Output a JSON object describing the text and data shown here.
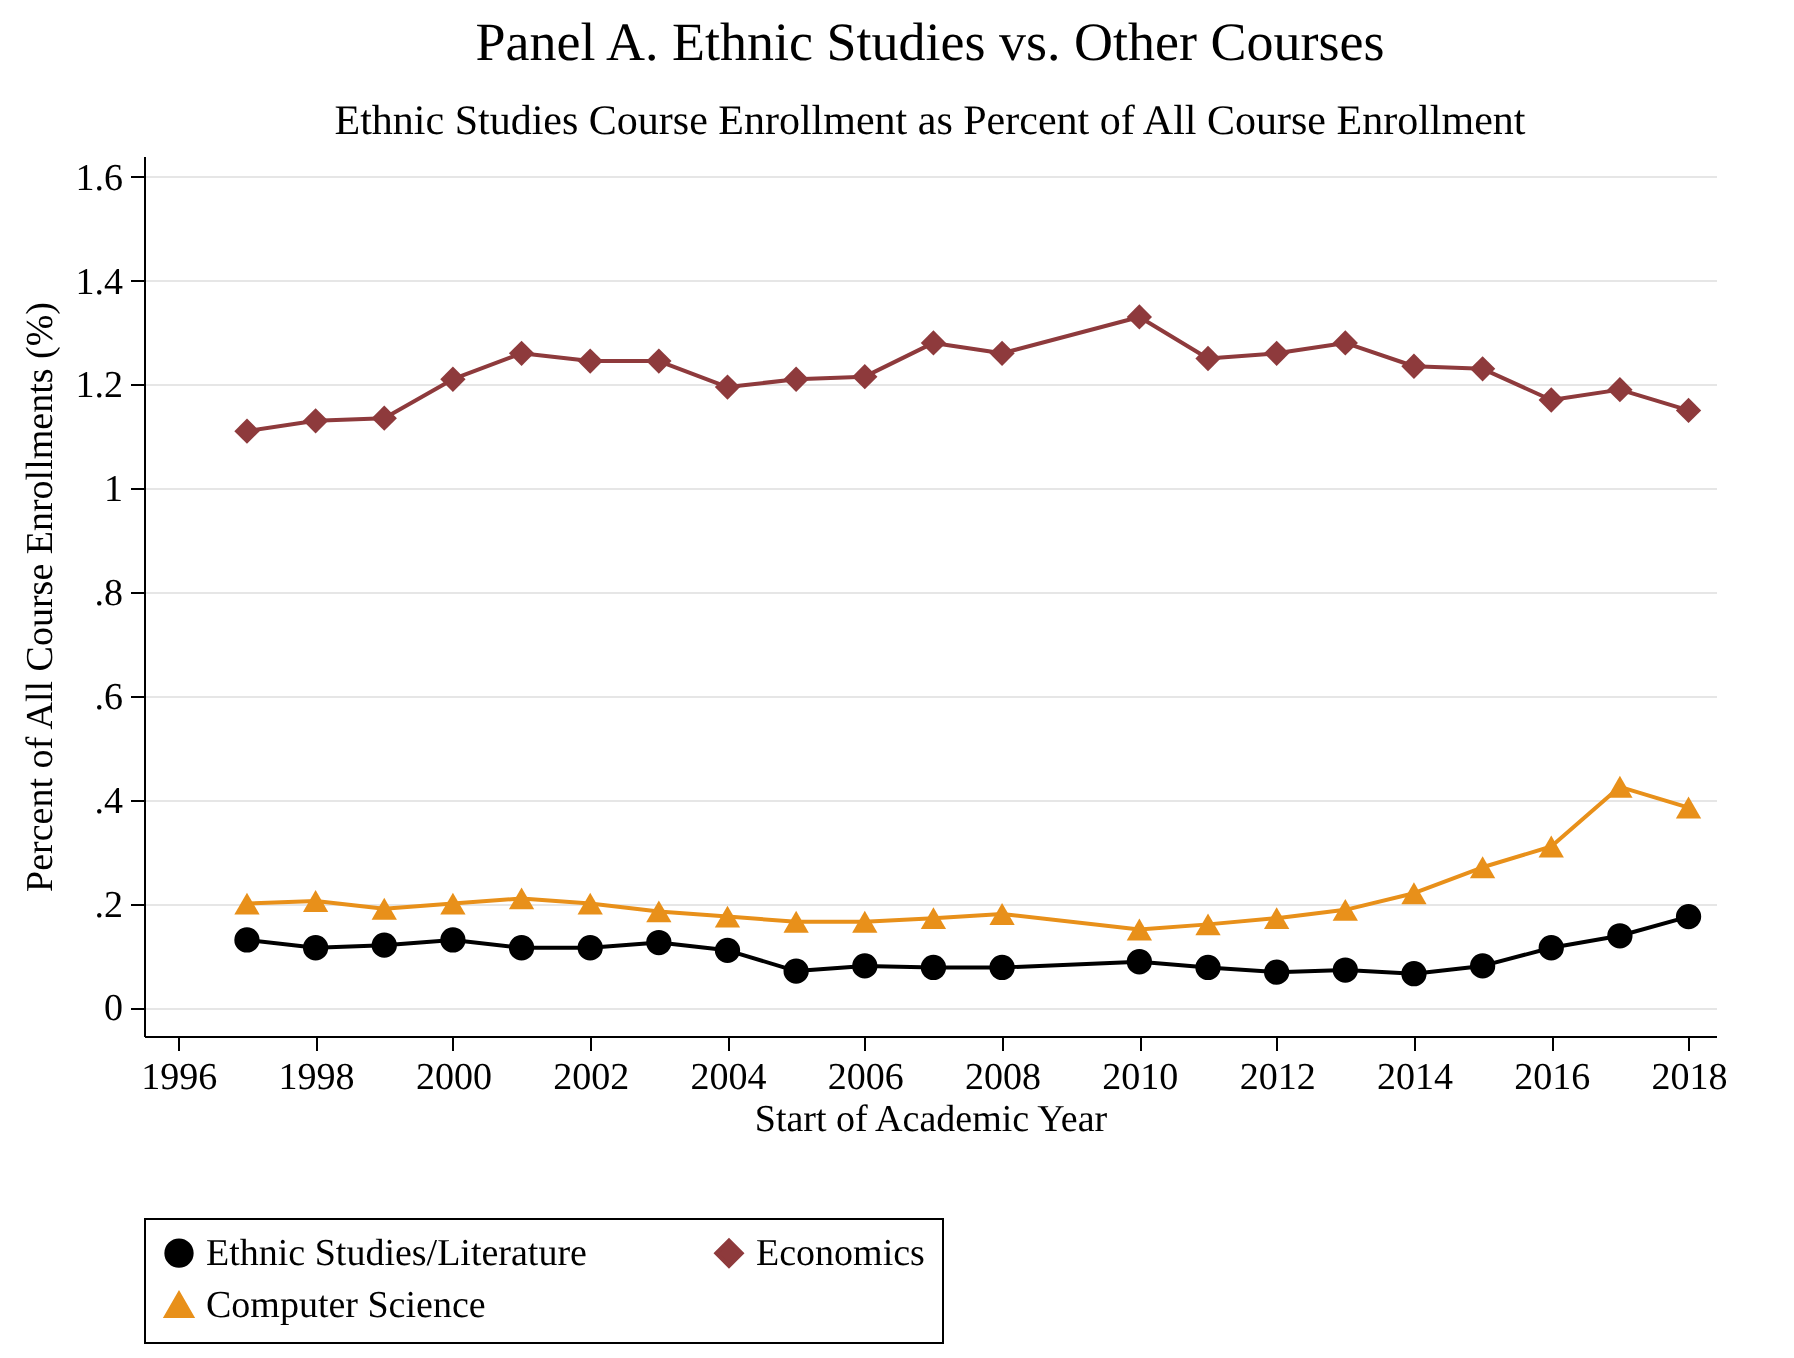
{
  "chart_data": {
    "type": "line",
    "title": "Panel A. Ethnic Studies vs. Other Courses",
    "subtitle": "Ethnic Studies Course Enrollment as Percent of All Course Enrollment",
    "xlabel": "Start of Academic Year",
    "ylabel": "Percent of All Course Enrollments (%)",
    "x": [
      1997,
      1998,
      1999,
      2000,
      2001,
      2002,
      2003,
      2004,
      2005,
      2006,
      2007,
      2008,
      2010,
      2011,
      2012,
      2013,
      2014,
      2015,
      2016,
      2017,
      2018
    ],
    "series": [
      {
        "name": "Ethnic Studies/Literature",
        "color": "#000000",
        "marker": "circle",
        "values": [
          0.13,
          0.115,
          0.12,
          0.13,
          0.115,
          0.115,
          0.125,
          0.11,
          0.07,
          0.08,
          0.077,
          0.077,
          0.088,
          0.077,
          0.068,
          0.072,
          0.065,
          0.08,
          0.115,
          0.138,
          0.175
        ]
      },
      {
        "name": "Economics",
        "color": "#8e3a3c",
        "marker": "diamond",
        "values": [
          1.11,
          1.13,
          1.135,
          1.21,
          1.26,
          1.245,
          1.245,
          1.195,
          1.21,
          1.215,
          1.28,
          1.26,
          1.33,
          1.25,
          1.26,
          1.28,
          1.235,
          1.23,
          1.17,
          1.19,
          1.15
        ]
      },
      {
        "name": "Computer Science",
        "color": "#e8901a",
        "marker": "triangle",
        "values": [
          0.2,
          0.205,
          0.19,
          0.2,
          0.21,
          0.2,
          0.185,
          0.175,
          0.165,
          0.165,
          0.172,
          0.18,
          0.15,
          0.16,
          0.172,
          0.188,
          0.22,
          0.27,
          0.31,
          0.425,
          0.385
        ]
      }
    ],
    "xlim": [
      1995.5,
      2018.4
    ],
    "xticks": [
      1996,
      1998,
      2000,
      2002,
      2004,
      2006,
      2008,
      2010,
      2012,
      2014,
      2016,
      2018
    ],
    "ylim": [
      -0.055,
      1.64
    ],
    "yticks": [
      {
        "value": 0,
        "label": "0"
      },
      {
        "value": 0.2,
        "label": ".2"
      },
      {
        "value": 0.4,
        "label": ".4"
      },
      {
        "value": 0.6,
        "label": ".6"
      },
      {
        "value": 0.8,
        "label": ".8"
      },
      {
        "value": 1,
        "label": "1"
      },
      {
        "value": 1.2,
        "label": "1.2"
      },
      {
        "value": 1.4,
        "label": "1.4"
      },
      {
        "value": 1.6,
        "label": "1.6"
      }
    ],
    "grid": "y",
    "legend": "bottom",
    "line_style": "solid"
  }
}
